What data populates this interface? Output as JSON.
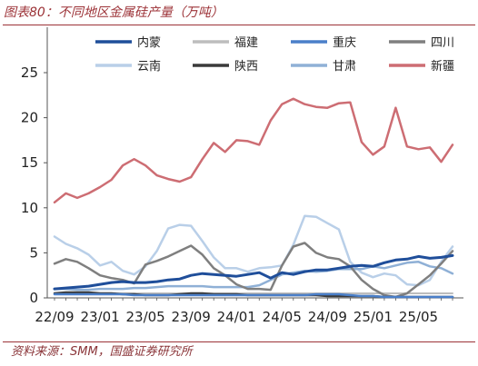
{
  "header": {
    "title": "图表80：不同地区金属硅产量（万吨）"
  },
  "footer": {
    "source": "资料来源：SMM，国盛证券研究所"
  },
  "chart_data": {
    "type": "line",
    "title": "图表80：不同地区金属硅产量（万吨）",
    "xlabel": "",
    "ylabel": "",
    "ylim": [
      0,
      25
    ],
    "yticks": [
      0,
      5,
      10,
      15,
      20,
      25
    ],
    "x_tick_labels": [
      "22/09",
      "23/01",
      "23/05",
      "23/09",
      "24/01",
      "24/05",
      "24/09",
      "25/01",
      "25/05"
    ],
    "x": [
      "2022-09",
      "2022-10",
      "2022-11",
      "2022-12",
      "2023-01",
      "2023-02",
      "2023-03",
      "2023-04",
      "2023-05",
      "2023-06",
      "2023-07",
      "2023-08",
      "2023-09",
      "2023-10",
      "2023-11",
      "2023-12",
      "2024-01",
      "2024-02",
      "2024-03",
      "2024-04",
      "2024-05",
      "2024-06",
      "2024-07",
      "2024-08",
      "2024-09",
      "2024-10",
      "2024-11",
      "2024-12",
      "2025-01",
      "2025-02",
      "2025-03",
      "2025-04",
      "2025-05",
      "2025-06",
      "2025-07",
      "2025-08"
    ],
    "grid": false,
    "legend": "top",
    "series": [
      {
        "name": "内蒙",
        "color": "#1f4e9a",
        "width": 3,
        "values": [
          1.0,
          1.1,
          1.2,
          1.3,
          1.5,
          1.7,
          1.8,
          1.7,
          1.7,
          1.8,
          2.0,
          2.1,
          2.5,
          2.7,
          2.6,
          2.5,
          2.4,
          2.6,
          2.8,
          2.2,
          2.8,
          2.6,
          2.9,
          3.1,
          3.1,
          3.3,
          3.5,
          3.6,
          3.5,
          3.9,
          4.2,
          4.3,
          4.6,
          4.4,
          4.5,
          4.7
        ]
      },
      {
        "name": "福建",
        "color": "#bdbdbd",
        "width": 2,
        "values": [
          0.5,
          0.5,
          0.5,
          0.5,
          0.5,
          0.5,
          0.5,
          0.5,
          0.5,
          0.5,
          0.5,
          0.5,
          0.5,
          0.5,
          0.5,
          0.5,
          0.5,
          0.5,
          0.5,
          0.5,
          0.5,
          0.5,
          0.5,
          0.5,
          0.5,
          0.5,
          0.5,
          0.5,
          0.5,
          0.5,
          0.5,
          0.5,
          0.5,
          0.5,
          0.5,
          0.5
        ]
      },
      {
        "name": "重庆",
        "color": "#4a7fc9",
        "width": 2.5,
        "values": [
          0.4,
          0.4,
          0.4,
          0.4,
          0.4,
          0.4,
          0.4,
          0.3,
          0.3,
          0.3,
          0.3,
          0.3,
          0.3,
          0.3,
          0.3,
          0.3,
          0.3,
          0.3,
          0.3,
          0.3,
          0.3,
          0.3,
          0.3,
          0.4,
          0.4,
          0.4,
          0.3,
          0.2,
          0.2,
          0.1,
          0.1,
          0.1,
          0.1,
          0.1,
          0.1,
          0.1
        ]
      },
      {
        "name": "四川",
        "color": "#7f7f7f",
        "width": 2.5,
        "values": [
          3.8,
          4.3,
          4.0,
          3.3,
          2.5,
          2.2,
          2.0,
          1.6,
          3.7,
          4.1,
          4.6,
          5.2,
          5.8,
          4.8,
          3.3,
          2.5,
          1.5,
          1.0,
          1.0,
          0.9,
          3.6,
          5.7,
          6.1,
          5.0,
          4.5,
          4.3,
          3.5,
          2.0,
          1.0,
          0.3,
          0.1,
          0.5,
          1.5,
          2.5,
          3.8,
          5.2
        ]
      },
      {
        "name": "云南",
        "color": "#b9cfe8",
        "width": 2.5,
        "values": [
          6.8,
          6.0,
          5.5,
          4.8,
          3.6,
          4.0,
          3.0,
          2.6,
          3.5,
          5.2,
          7.7,
          8.1,
          8.0,
          6.3,
          4.5,
          3.3,
          3.3,
          2.9,
          3.3,
          3.4,
          3.6,
          5.9,
          9.1,
          9.0,
          8.3,
          7.6,
          4.0,
          2.8,
          2.3,
          2.7,
          2.5,
          1.5,
          1.4,
          2.0,
          4.0,
          5.7
        ]
      },
      {
        "name": "陕西",
        "color": "#3a3a3a",
        "width": 2.5,
        "values": [
          0.5,
          0.6,
          0.6,
          0.6,
          0.5,
          0.5,
          0.4,
          0.4,
          0.3,
          0.3,
          0.3,
          0.4,
          0.5,
          0.5,
          0.4,
          0.4,
          0.4,
          0.3,
          0.3,
          0.3,
          0.3,
          0.3,
          0.3,
          0.3,
          0.2,
          0.2,
          0.2,
          0.2,
          0.2,
          0.1,
          0.1,
          0.1,
          0.1,
          0.1,
          0.1,
          0.1
        ]
      },
      {
        "name": "甘肃",
        "color": "#8fb0d6",
        "width": 2.5,
        "values": [
          1.0,
          1.0,
          0.9,
          0.9,
          1.0,
          1.0,
          1.0,
          1.1,
          1.1,
          1.2,
          1.3,
          1.3,
          1.3,
          1.3,
          1.2,
          1.2,
          1.2,
          1.2,
          1.4,
          2.0,
          2.6,
          2.8,
          3.0,
          2.9,
          3.0,
          3.2,
          3.2,
          3.2,
          3.5,
          3.3,
          3.6,
          3.9,
          4.0,
          3.5,
          3.3,
          2.7
        ]
      },
      {
        "name": "新疆",
        "color": "#cd6d73",
        "width": 2.5,
        "values": [
          10.6,
          11.6,
          11.1,
          11.6,
          12.3,
          13.1,
          14.7,
          15.4,
          14.7,
          13.6,
          13.2,
          12.9,
          13.4,
          15.4,
          17.2,
          16.2,
          17.5,
          17.4,
          17.0,
          19.7,
          21.5,
          22.1,
          21.5,
          21.2,
          21.1,
          21.6,
          21.7,
          17.3,
          15.9,
          16.8,
          21.1,
          16.8,
          16.5,
          16.7,
          15.1,
          17.0
        ]
      }
    ]
  }
}
